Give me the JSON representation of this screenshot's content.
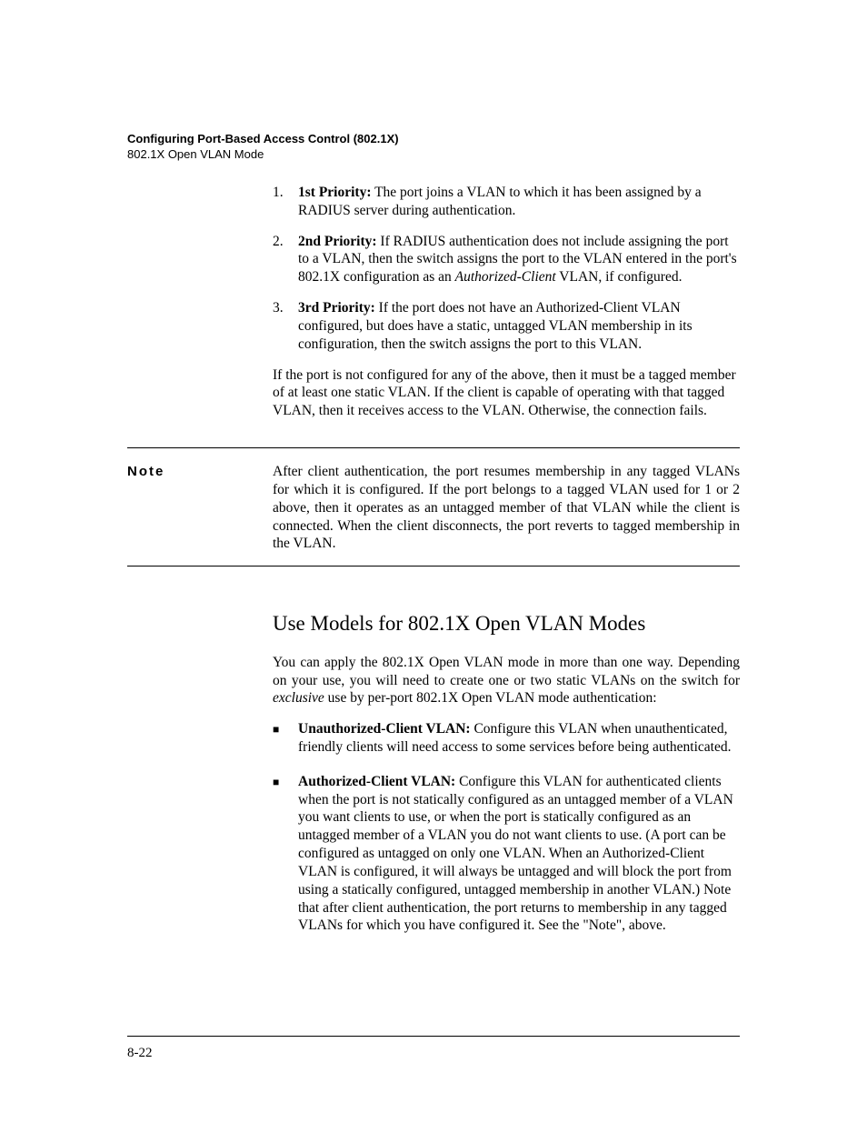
{
  "header": {
    "title": "Configuring Port-Based Access Control (802.1X)",
    "subtitle": "802.1X Open VLAN Mode"
  },
  "priorities": [
    {
      "num": "1.",
      "label": "1st Priority:",
      "text": " The port joins a VLAN to which it has been assigned by a RADIUS server during authentication."
    },
    {
      "num": "2.",
      "label": "2nd Priority:",
      "text_before": " If RADIUS authentication does not include assigning the port to a VLAN, then the switch assigns the port to the VLAN entered in the port's 802.1X configuration as an ",
      "italic": "Authorized-Client",
      "text_after": " VLAN, if configured."
    },
    {
      "num": "3.",
      "label": "3rd Priority:",
      "text": " If the port does not have an Authorized-Client VLAN configured, but does have a static, untagged VLAN membership in its configuration, then the switch assigns the port to this VLAN."
    }
  ],
  "tagged_para": "If the port is not configured for any of the above, then it must be a tagged member of at least one static VLAN. If the client is capable of operating with that tagged VLAN, then it receives access to the VLAN. Otherwise, the connection fails.",
  "note": {
    "label": "Note",
    "body": "After client authentication, the port resumes membership in any tagged VLANs for which it is configured. If the port belongs to a tagged VLAN used for 1 or 2 above, then it operates as an untagged member of that VLAN while the client is connected. When the client disconnects, the port reverts to tagged membership in the VLAN."
  },
  "section_heading": "Use Models for 802.1X Open VLAN Modes",
  "intro_para_before": "You can apply the 802.1X Open VLAN mode in more than one way. Depending on your use, you will need to create one or two static VLANs on the switch for ",
  "intro_italic": "exclusive",
  "intro_para_after": " use by per-port 802.1X Open VLAN mode authentication:",
  "bullets": [
    {
      "label": "Unauthorized-Client VLAN:",
      "text": " Configure this VLAN when unauthenticated, friendly clients will need access to some services before being authenticated."
    },
    {
      "label": "Authorized-Client VLAN:",
      "text": " Configure this VLAN for authenticated clients when the port is not statically configured as an untagged member of a VLAN you want clients to use, or when the port is statically configured as an untagged member of a VLAN you do not want clients to use. (A port can be configured as untagged on only one VLAN. When an Authorized-Client VLAN is configured, it will always be untagged and will block the port from using a statically configured, untagged membership in another VLAN.) Note that after client authentication, the port returns to membership in any tagged VLANs for which you have configured it. See the \"Note\", above."
    }
  ],
  "page_number": "8-22"
}
